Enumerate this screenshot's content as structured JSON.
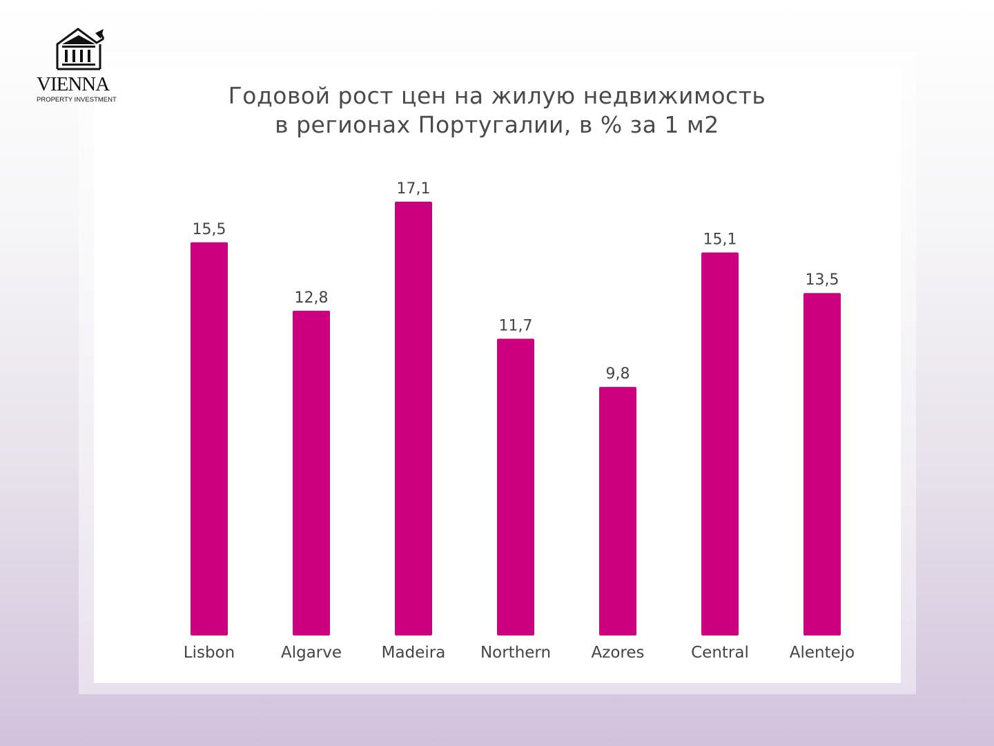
{
  "logo": {
    "name": "VIENNA",
    "subtitle": "PROPERTY INVESTMENT"
  },
  "chart_data": {
    "type": "bar",
    "title_lines": [
      "Годовой рост цен на жилую недвижимость",
      "в регионах Португалии, в % за 1 м2"
    ],
    "categories": [
      "Lisbon",
      "Algarve",
      "Madeira",
      "Northern",
      "Azores",
      "Central",
      "Alentejo"
    ],
    "values": [
      15.5,
      12.8,
      17.1,
      11.7,
      9.8,
      15.1,
      13.5
    ],
    "value_labels": [
      "15,5",
      "12,8",
      "17,1",
      "11,7",
      "9,8",
      "15,1",
      "13,5"
    ],
    "ylim": [
      0,
      17.1
    ],
    "grid": false,
    "bar_color": "#cc007f",
    "xlabel": "",
    "ylabel": ""
  }
}
